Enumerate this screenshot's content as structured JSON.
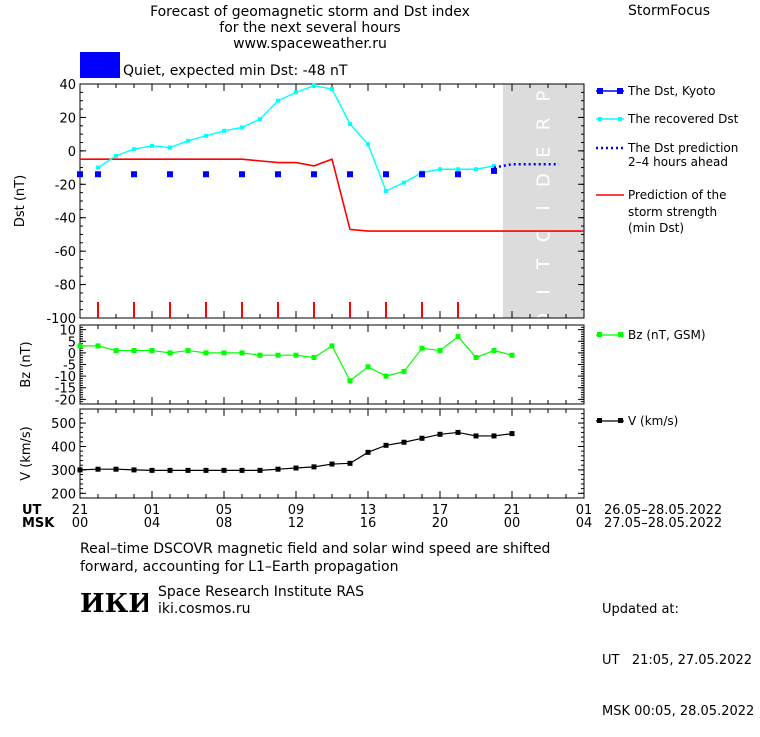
{
  "header": {
    "title_line1": "Forecast of geomagnetic storm and Dst index",
    "title_line2": "for the next several hours",
    "title_line3": "www.spaceweather.ru",
    "brand": "StormFocus"
  },
  "status": {
    "text": "Quiet, expected min Dst: -48 nT",
    "color": "#0000ff"
  },
  "colors": {
    "kyoto": "#0000ff",
    "recovered": "#00ffff",
    "prediction": "#0000ff",
    "strength": "#ff0000",
    "bz": "#00ff00",
    "v": "#000000",
    "prediction_zone": "#dcdcdc"
  },
  "chart_data": [
    {
      "type": "line",
      "panel": "dst",
      "ylabel": "Dst (nT)",
      "ylim": [
        -100,
        40
      ],
      "yticks": [
        40,
        20,
        0,
        -20,
        -40,
        -60,
        -80,
        -100
      ],
      "xlim": [
        0,
        28
      ],
      "prediction_zone": {
        "x_start": 23.5,
        "label": "PREDICTION"
      },
      "series": [
        {
          "name": "The Dst, Kyoto",
          "style": "squares",
          "x": [
            0,
            1,
            3,
            5,
            7,
            9,
            11,
            13,
            15,
            17,
            19,
            21,
            23
          ],
          "y": [
            -14,
            -14,
            -14,
            -14,
            -14,
            -14,
            -14,
            -14,
            -14,
            -14,
            -14,
            -14,
            -12
          ]
        },
        {
          "name": "The recovered Dst",
          "style": "line-small-squares",
          "x": [
            1,
            2,
            3,
            4,
            5,
            6,
            7,
            8,
            9,
            10,
            11,
            12,
            13,
            14,
            15,
            16,
            17,
            18,
            19,
            20,
            21,
            22,
            23
          ],
          "y": [
            -10,
            -3,
            1,
            3,
            2,
            6,
            9,
            12,
            14,
            19,
            30,
            35,
            39,
            37,
            16,
            4,
            -24,
            -19,
            -13,
            -11,
            -11,
            -11,
            -9
          ]
        },
        {
          "name": "The Dst prediction 2-4 hours ahead",
          "style": "dotted",
          "x": [
            23,
            24,
            25,
            26,
            26.6
          ],
          "y": [
            -10,
            -8,
            -8,
            -8,
            -8
          ]
        },
        {
          "name": "Prediction of the storm strength (min Dst)",
          "style": "line",
          "x": [
            0,
            9,
            10,
            11,
            12,
            13,
            14,
            15,
            16,
            28
          ],
          "y": [
            -5,
            -5,
            -6,
            -7,
            -7,
            -9,
            -5,
            -47,
            -48,
            -48
          ]
        }
      ],
      "markers_x": [
        1,
        3,
        5,
        7,
        9,
        11,
        13,
        15,
        17,
        19,
        21
      ]
    },
    {
      "type": "line",
      "panel": "bz",
      "ylabel": "Bz (nT)",
      "ylim": [
        -22,
        12
      ],
      "yticks": [
        10,
        5,
        0,
        -5,
        -10,
        -15,
        -20
      ],
      "series": [
        {
          "name": "Bz (nT, GSM)",
          "x": [
            0,
            1,
            2,
            3,
            4,
            5,
            6,
            7,
            8,
            9,
            10,
            11,
            12,
            13,
            14,
            15,
            16,
            17,
            18,
            19,
            20,
            21,
            22,
            23,
            24
          ],
          "y": [
            3,
            3,
            1,
            1,
            1,
            0,
            1,
            0,
            0,
            0,
            -1,
            -1,
            -1,
            -2,
            3,
            -12,
            -6,
            -10,
            -8,
            2,
            1,
            7,
            -2,
            1,
            -1
          ]
        }
      ]
    },
    {
      "type": "line",
      "panel": "v",
      "ylabel": "V (km/s)",
      "ylim": [
        180,
        560
      ],
      "yticks": [
        500,
        400,
        300,
        200
      ],
      "series": [
        {
          "name": "V (km/s)",
          "x": [
            0,
            1,
            2,
            3,
            4,
            5,
            6,
            7,
            8,
            9,
            10,
            11,
            12,
            13,
            14,
            15,
            16,
            17,
            18,
            19,
            20,
            21,
            22,
            23,
            24
          ],
          "y": [
            300,
            303,
            303,
            300,
            298,
            298,
            298,
            298,
            298,
            298,
            298,
            303,
            308,
            313,
            325,
            328,
            375,
            405,
            418,
            435,
            452,
            460,
            445,
            445,
            455
          ]
        }
      ]
    }
  ],
  "x_axis": {
    "ut_label": "UT",
    "msk_label": "MSK",
    "ticks": [
      {
        "x": 0,
        "ut": "21",
        "msk": "00"
      },
      {
        "x": 4,
        "ut": "01",
        "msk": "04"
      },
      {
        "x": 8,
        "ut": "05",
        "msk": "08"
      },
      {
        "x": 12,
        "ut": "09",
        "msk": "12"
      },
      {
        "x": 16,
        "ut": "13",
        "msk": "16"
      },
      {
        "x": 20,
        "ut": "17",
        "msk": "20"
      },
      {
        "x": 24,
        "ut": "21",
        "msk": "00"
      },
      {
        "x": 28,
        "ut": "01",
        "msk": "04"
      }
    ],
    "ut_range": "26.05–28.05.2022",
    "msk_range": "27.05–28.05.2022"
  },
  "legend": {
    "kyoto": "The Dst, Kyoto",
    "recovered": "The recovered Dst",
    "prediction_line1": "The Dst prediction",
    "prediction_line2": "2–4 hours ahead",
    "strength_line1": "Prediction of the",
    "strength_line2": "storm strength",
    "strength_line3": "(min Dst)",
    "bz": "Bz (nT, GSM)",
    "v": "V (km/s)"
  },
  "footer": {
    "note_line1": "Real–time DSCOVR magnetic field and solar wind speed are shifted",
    "note_line2": "forward, accounting for L1–Earth propagation",
    "institute": "Space Research Institute RAS",
    "site": "iki.cosmos.ru",
    "logo_text": "ИКИ",
    "updated_label": "Updated at:",
    "updated_ut": "UT   21:05, 27.05.2022",
    "updated_msk": "MSK 00:05, 28.05.2022"
  }
}
